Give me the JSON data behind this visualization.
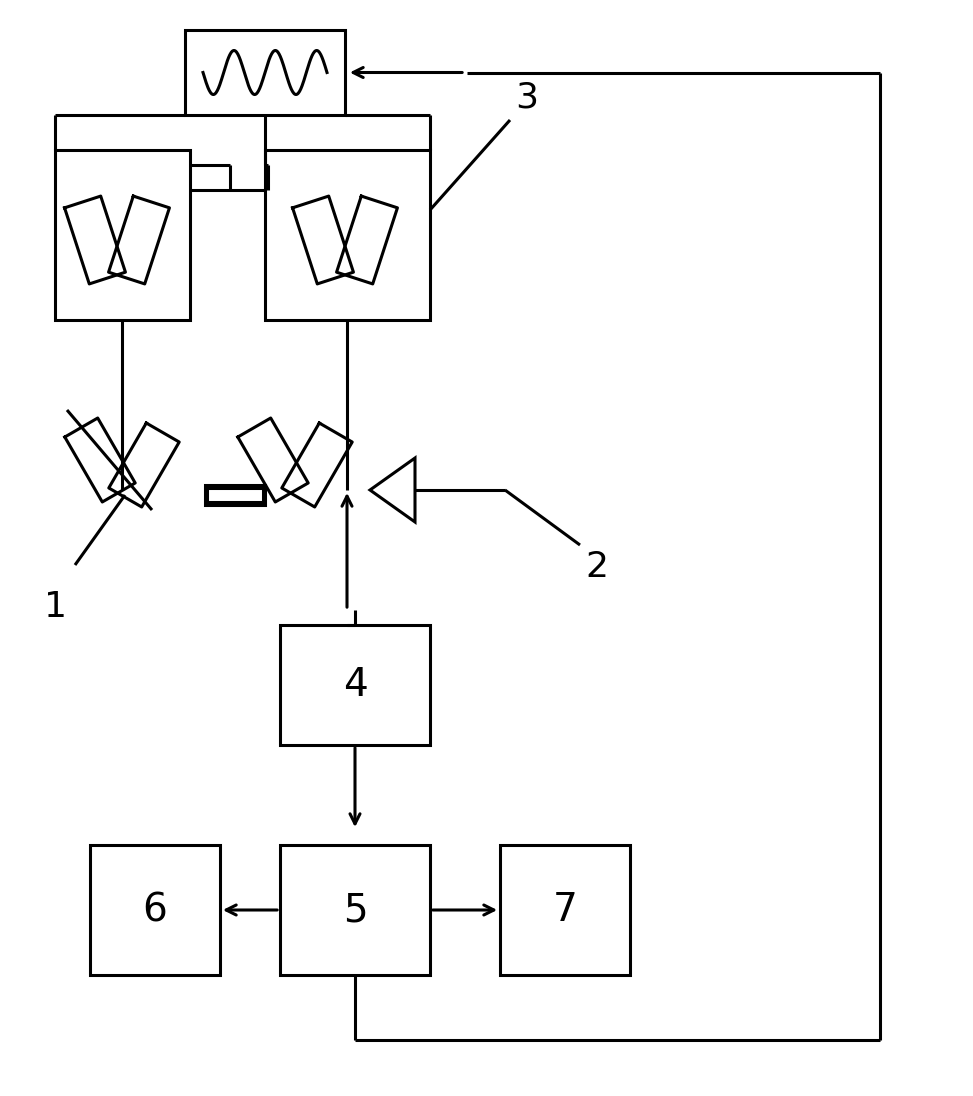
{
  "bg_color": "#ffffff",
  "line_color": "#000000",
  "lw": 2.2,
  "fig_w": 9.73,
  "fig_h": 10.96
}
